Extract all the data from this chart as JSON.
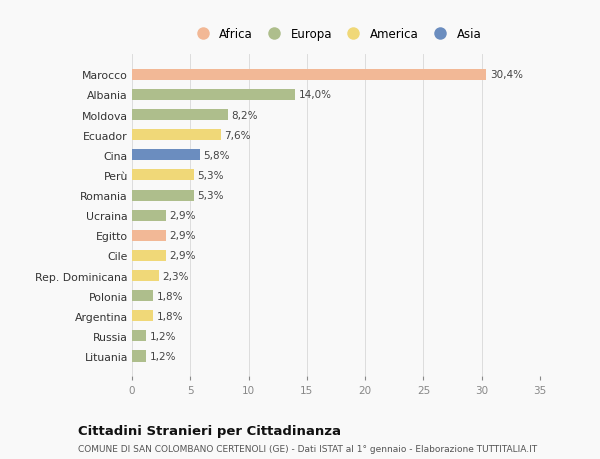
{
  "countries": [
    "Marocco",
    "Albania",
    "Moldova",
    "Ecuador",
    "Cina",
    "Perù",
    "Romania",
    "Ucraina",
    "Egitto",
    "Cile",
    "Rep. Dominicana",
    "Polonia",
    "Argentina",
    "Russia",
    "Lituania"
  ],
  "values": [
    30.4,
    14.0,
    8.2,
    7.6,
    5.8,
    5.3,
    5.3,
    2.9,
    2.9,
    2.9,
    2.3,
    1.8,
    1.8,
    1.2,
    1.2
  ],
  "labels": [
    "30,4%",
    "14,0%",
    "8,2%",
    "7,6%",
    "5,8%",
    "5,3%",
    "5,3%",
    "2,9%",
    "2,9%",
    "2,9%",
    "2,3%",
    "1,8%",
    "1,8%",
    "1,2%",
    "1,2%"
  ],
  "continents": [
    "Africa",
    "Europa",
    "Europa",
    "America",
    "Asia",
    "America",
    "Europa",
    "Europa",
    "Africa",
    "America",
    "America",
    "Europa",
    "America",
    "Europa",
    "Europa"
  ],
  "colors": {
    "Africa": "#F2B896",
    "Europa": "#AEBE8C",
    "America": "#F0D878",
    "Asia": "#6B8DBF"
  },
  "legend_order": [
    "Africa",
    "Europa",
    "America",
    "Asia"
  ],
  "title": "Cittadini Stranieri per Cittadinanza",
  "subtitle": "COMUNE DI SAN COLOMBANO CERTENOLI (GE) - Dati ISTAT al 1° gennaio - Elaborazione TUTTITALIA.IT",
  "xlim": [
    0,
    35
  ],
  "xticks": [
    0,
    5,
    10,
    15,
    20,
    25,
    30,
    35
  ],
  "background_color": "#f9f9f9",
  "bar_height": 0.55,
  "label_fontsize": 7.5,
  "ytick_fontsize": 7.8,
  "xtick_fontsize": 7.5,
  "legend_fontsize": 8.5,
  "title_fontsize": 9.5,
  "subtitle_fontsize": 6.5
}
